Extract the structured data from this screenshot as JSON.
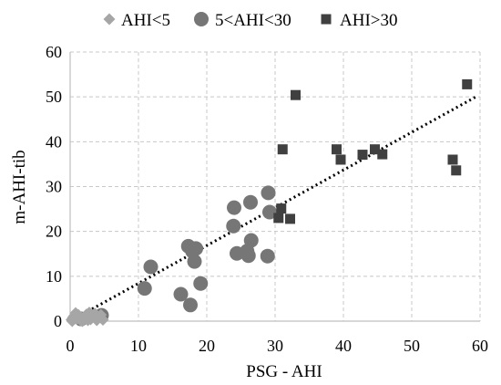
{
  "chart_data": {
    "type": "scatter",
    "xlabel": "PSG - AHI",
    "ylabel": "m-AHI-tib",
    "xlim": [
      0,
      60
    ],
    "ylim": [
      0,
      60
    ],
    "x_ticks": [
      0,
      10,
      20,
      30,
      40,
      50,
      60
    ],
    "y_ticks": [
      0,
      10,
      20,
      30,
      40,
      50,
      60
    ],
    "grid": "dashed",
    "legend": "top",
    "series": [
      {
        "name": "AHI<5",
        "marker": "diamond",
        "color": "#a6a6a6",
        "points": [
          [
            0.2,
            0.3
          ],
          [
            0.4,
            0.8
          ],
          [
            0.6,
            1.2
          ],
          [
            0.8,
            1.8
          ],
          [
            1.0,
            0.5
          ],
          [
            1.2,
            1.4
          ],
          [
            1.5,
            0.2
          ],
          [
            2.0,
            0.6
          ],
          [
            2.4,
            1.5
          ],
          [
            2.8,
            1.9
          ],
          [
            3.0,
            0.4
          ],
          [
            3.3,
            1.0
          ],
          [
            3.6,
            1.7
          ],
          [
            3.9,
            0.2
          ],
          [
            4.2,
            0.9
          ],
          [
            4.5,
            1.4
          ],
          [
            4.8,
            0.3
          ],
          [
            0.3,
            0.0
          ],
          [
            1.8,
            0.0
          ],
          [
            2.6,
            0.2
          ]
        ]
      },
      {
        "name": "5<AHI<30",
        "marker": "circle",
        "color": "#767676",
        "points": [
          [
            1.6,
            0.5
          ],
          [
            4.6,
            1.3
          ],
          [
            10.9,
            7.3
          ],
          [
            11.8,
            12.1
          ],
          [
            16.2,
            6.0
          ],
          [
            17.3,
            16.7
          ],
          [
            17.6,
            3.6
          ],
          [
            17.9,
            15.6
          ],
          [
            18.4,
            16.2
          ],
          [
            18.2,
            13.3
          ],
          [
            19.1,
            8.4
          ],
          [
            23.9,
            21.2
          ],
          [
            24.0,
            25.3
          ],
          [
            24.4,
            15.1
          ],
          [
            25.9,
            15.6
          ],
          [
            26.1,
            14.6
          ],
          [
            26.4,
            26.5
          ],
          [
            26.5,
            18.0
          ],
          [
            28.9,
            14.5
          ],
          [
            29.0,
            28.6
          ],
          [
            29.2,
            24.3
          ]
        ]
      },
      {
        "name": "AHI>30",
        "marker": "square",
        "color": "#404040",
        "points": [
          [
            30.5,
            23.0
          ],
          [
            30.9,
            25.1
          ],
          [
            31.1,
            38.3
          ],
          [
            32.2,
            22.8
          ],
          [
            33.0,
            50.4
          ],
          [
            39.0,
            38.3
          ],
          [
            39.6,
            36.0
          ],
          [
            42.8,
            37.1
          ],
          [
            44.6,
            38.3
          ],
          [
            45.7,
            37.2
          ],
          [
            56.0,
            36.0
          ],
          [
            56.5,
            33.6
          ],
          [
            58.1,
            52.8
          ]
        ]
      }
    ],
    "trendline": {
      "style": "dotted",
      "color": "#000000",
      "x": [
        0,
        59.5
      ],
      "y": [
        0,
        50.1
      ]
    }
  }
}
